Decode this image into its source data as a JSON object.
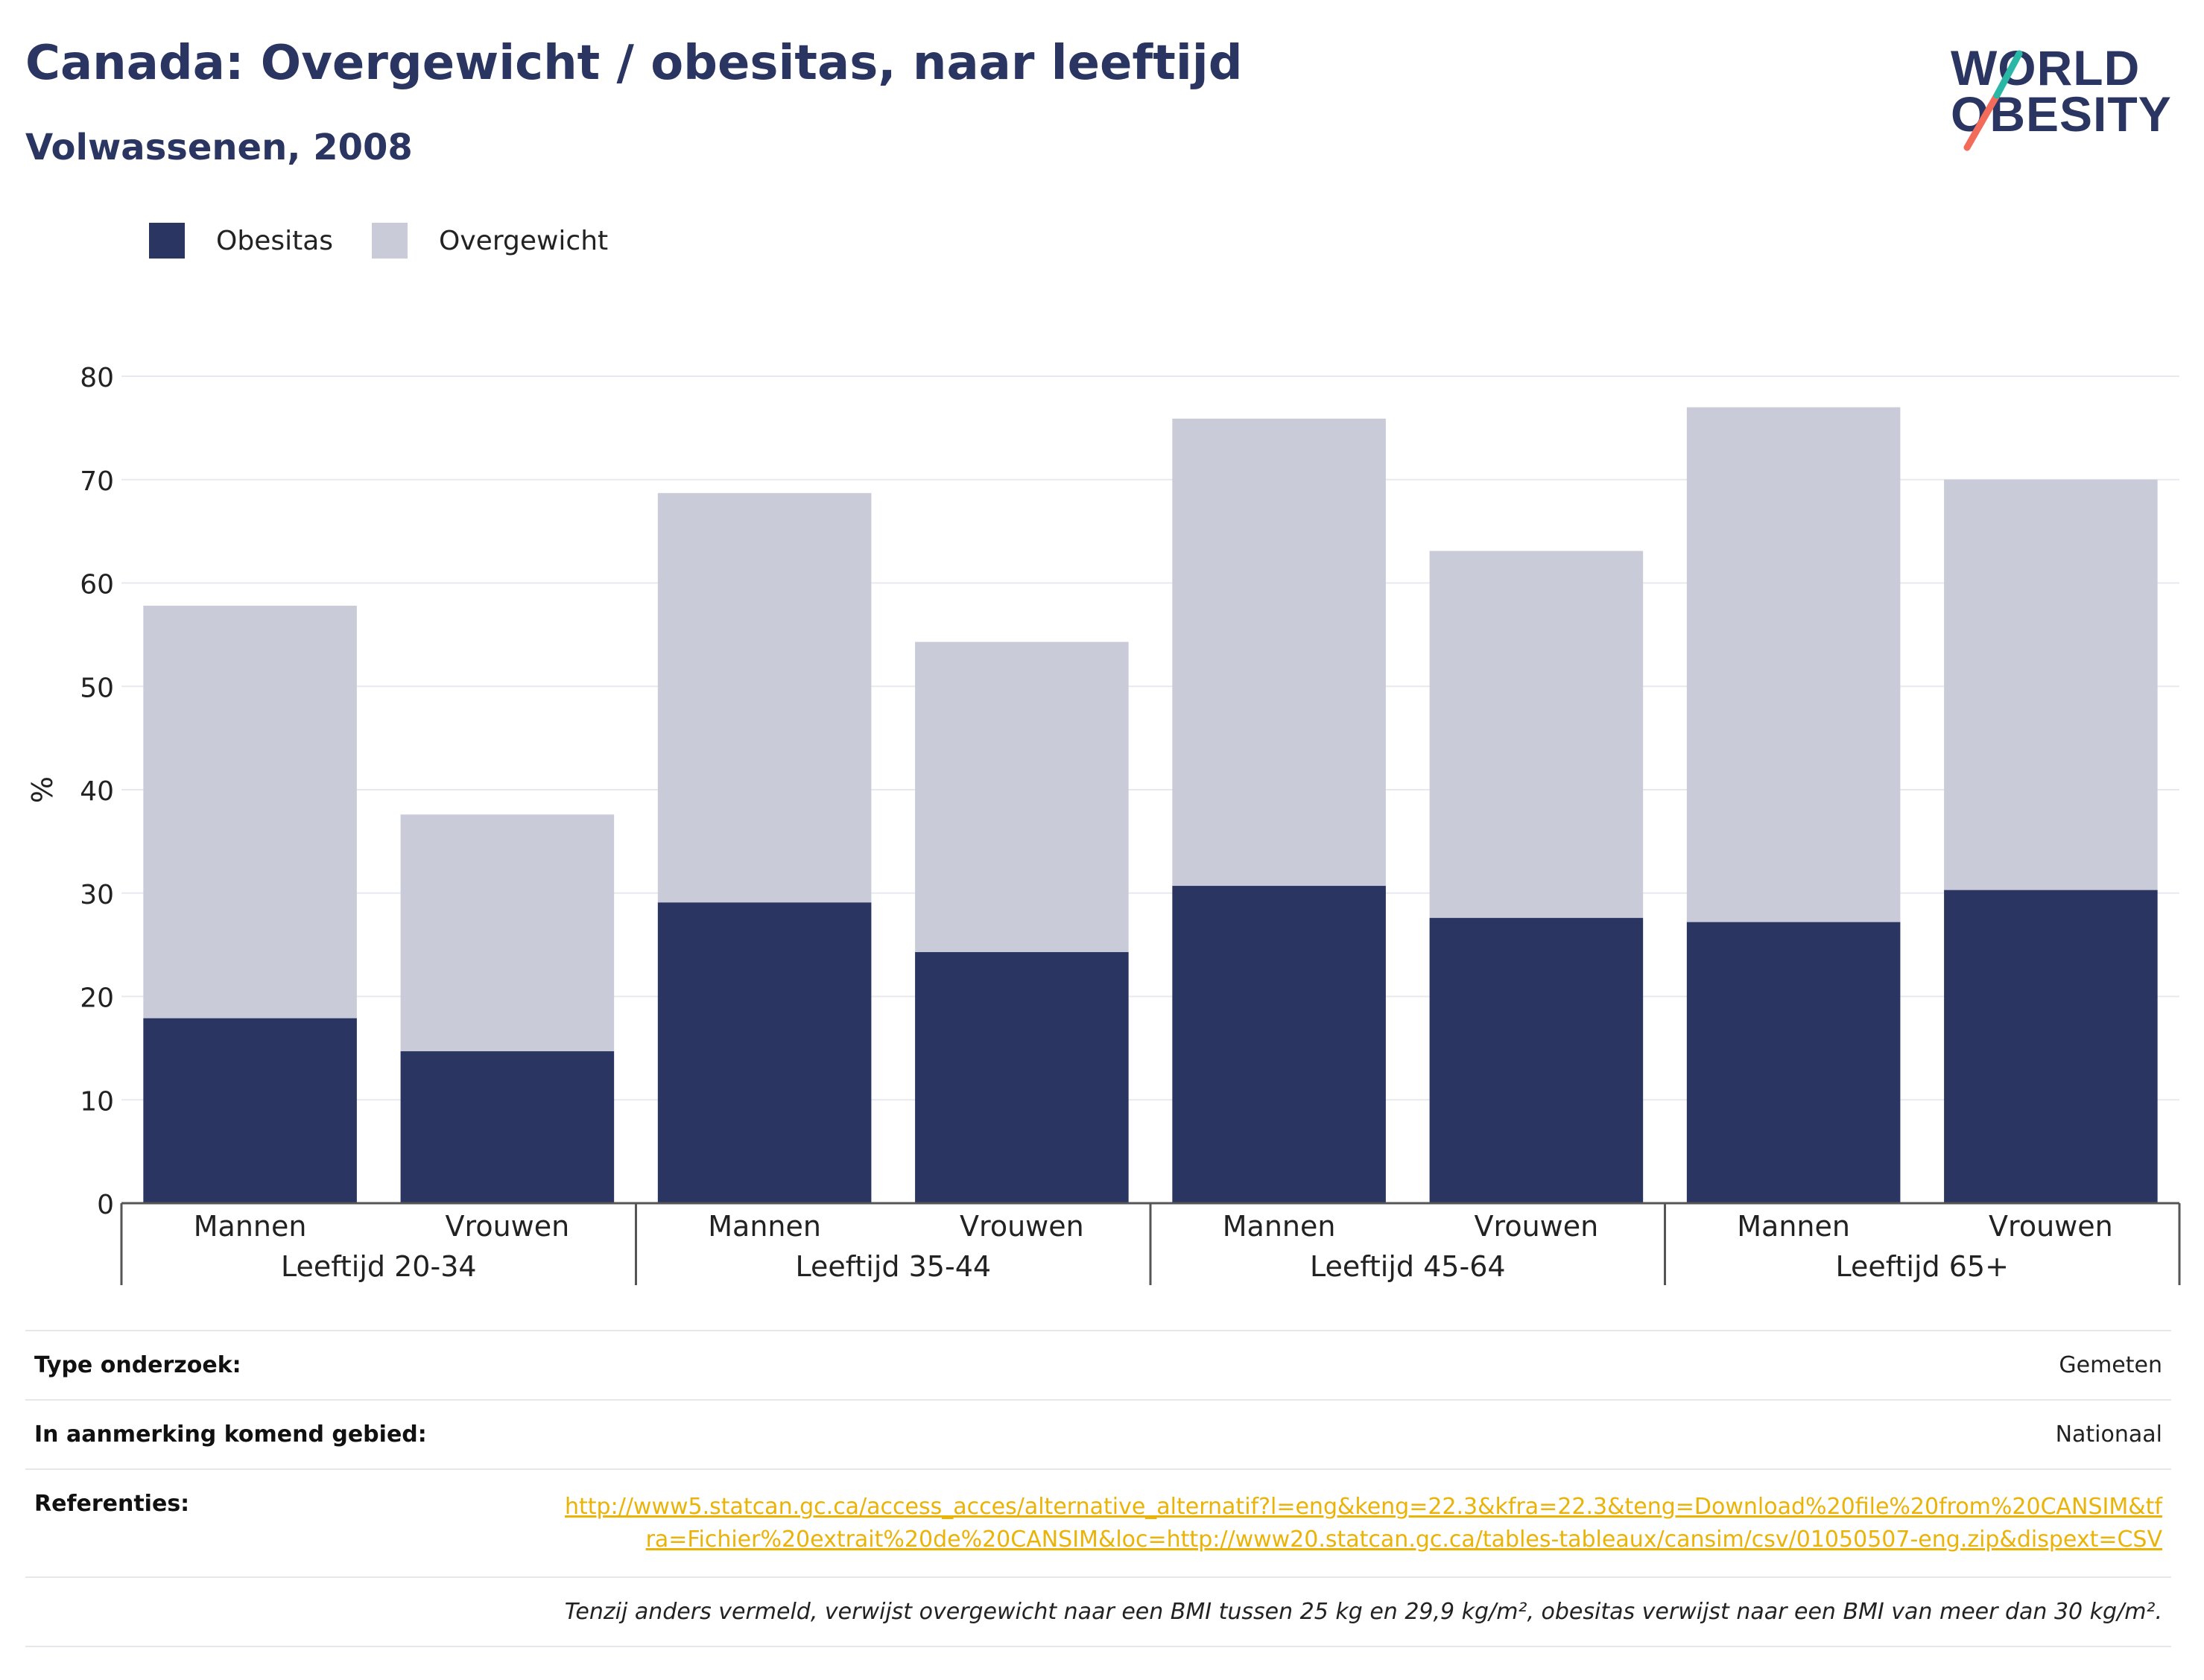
{
  "title": "Canada: Overgewicht / obesitas, naar leeftijd",
  "subtitle": "Volwassenen, 2008",
  "logo": {
    "line1": "WORLD",
    "line2": "OBESITY"
  },
  "colors": {
    "obesitas": "#2a3561",
    "overgewicht": "#c9cbd8",
    "title": "#2a3561",
    "link": "#eab308",
    "accent_teal": "#2bb7a6",
    "accent_coral": "#f26b5b"
  },
  "chart_data": {
    "type": "bar",
    "stacked": true,
    "groups": [
      "Leeftijd 20-34",
      "Leeftijd 35-44",
      "Leeftijd 45-64",
      "Leeftijd 65+"
    ],
    "categories": [
      "Mannen",
      "Vrouwen",
      "Mannen",
      "Vrouwen",
      "Mannen",
      "Vrouwen",
      "Mannen",
      "Vrouwen"
    ],
    "series": [
      {
        "name": "Obesitas",
        "values": [
          17.9,
          14.7,
          29.1,
          24.3,
          30.7,
          27.6,
          27.2,
          30.3
        ]
      },
      {
        "name": "Overgewicht",
        "values": [
          39.9,
          22.9,
          39.6,
          30.0,
          45.2,
          35.5,
          49.8,
          39.7
        ]
      }
    ],
    "ylabel": "%",
    "ylim": [
      0,
      80
    ],
    "yticks": [
      0,
      10,
      20,
      30,
      40,
      50,
      60,
      70,
      80
    ],
    "legend_position": "top-left",
    "grid": true
  },
  "meta": {
    "rows": [
      {
        "key": "Type onderzoek:",
        "value": "Gemeten"
      },
      {
        "key": "In aanmerking komend gebied:",
        "value": "Nationaal"
      }
    ],
    "references_label": "Referenties:",
    "references_link": "http://www5.statcan.gc.ca/access_acces/alternative_alternatif?l=eng&keng=22.3&kfra=22.3&teng=Download%20file%20from%20CANSIM&tfra=Fichier%20extrait%20de%20CANSIM&loc=http://www20.statcan.gc.ca/tables-tableaux/cansim/csv/01050507-eng.zip&dispext=CSV",
    "note": "Tenzij anders vermeld, verwijst overgewicht naar een BMI tussen 25 kg en 29,9 kg/m², obesitas verwijst naar een BMI van meer dan 30 kg/m²."
  }
}
